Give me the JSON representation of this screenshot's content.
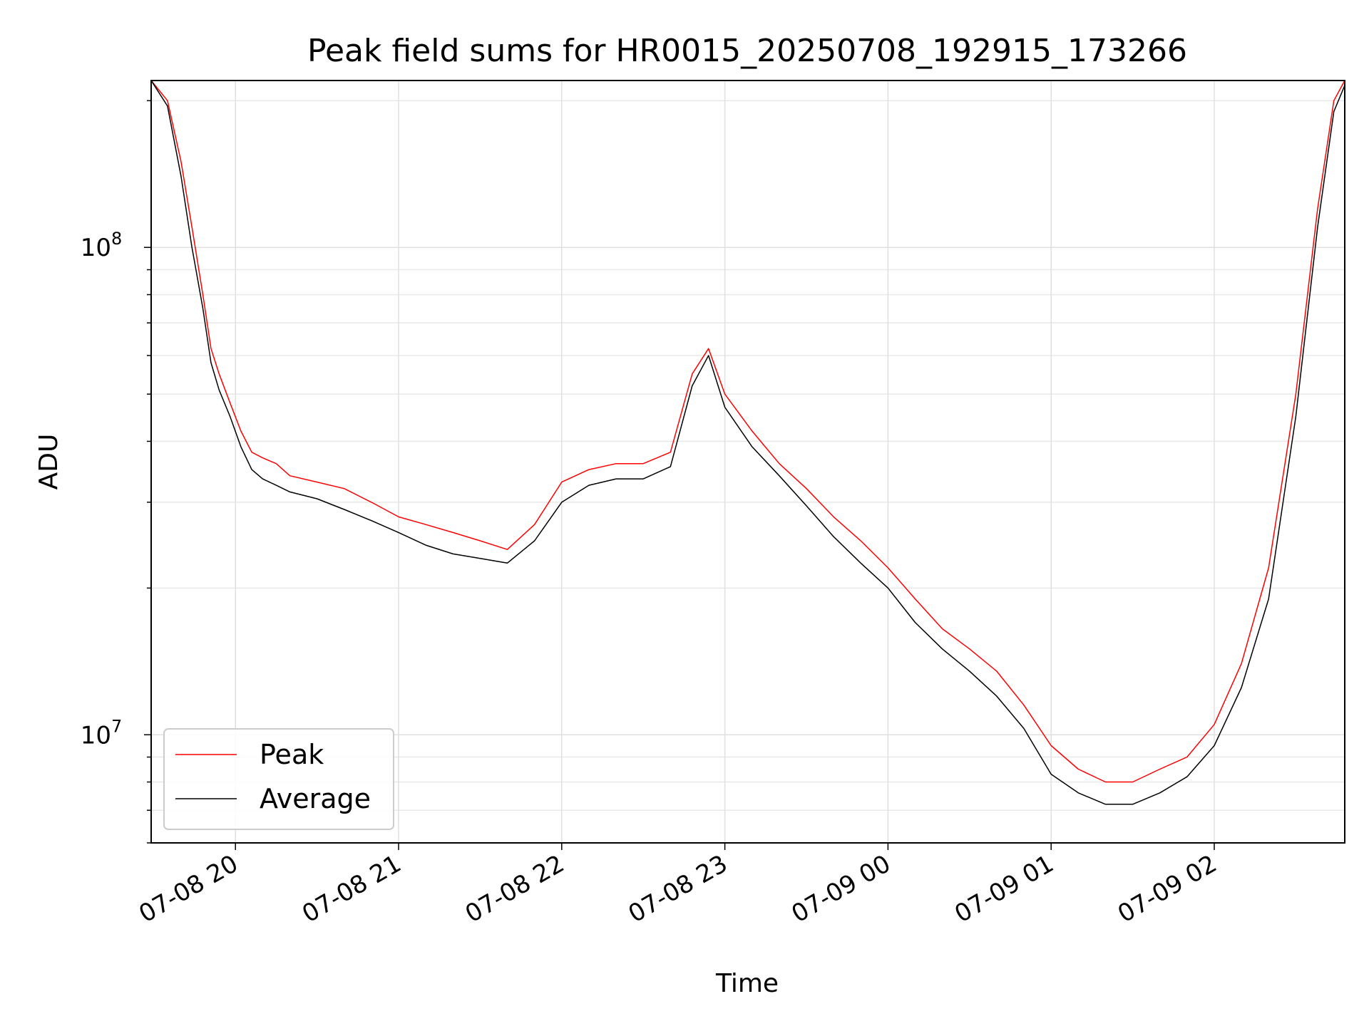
{
  "chart_data": {
    "type": "line",
    "title": "Peak field sums for HR0015_20250708_192915_173266",
    "xlabel": "Time",
    "ylabel": "ADU",
    "y_scale": "log",
    "ylim": [
      6000000,
      220000000
    ],
    "xlim": [
      "07-08 19:29",
      "07-09 02:48"
    ],
    "x_ticks": [
      "07-08 20",
      "07-08 21",
      "07-08 22",
      "07-08 23",
      "07-09 00",
      "07-09 01",
      "07-09 02"
    ],
    "y_ticks": [
      {
        "value": 10000000,
        "base": "10",
        "exp": "7"
      },
      {
        "value": 100000000,
        "base": "10",
        "exp": "8"
      }
    ],
    "grid": true,
    "legend_position": "lower-left",
    "series": [
      {
        "name": "Peak",
        "color": "#ff0000",
        "x": [
          "07-08 19:29",
          "07-08 19:35",
          "07-08 19:40",
          "07-08 19:44",
          "07-08 19:48",
          "07-08 19:51",
          "07-08 19:54",
          "07-08 19:58",
          "07-08 20:02",
          "07-08 20:06",
          "07-08 20:10",
          "07-08 20:15",
          "07-08 20:20",
          "07-08 20:30",
          "07-08 20:40",
          "07-08 20:50",
          "07-08 21:00",
          "07-08 21:10",
          "07-08 21:20",
          "07-08 21:30",
          "07-08 21:40",
          "07-08 21:50",
          "07-08 22:00",
          "07-08 22:10",
          "07-08 22:20",
          "07-08 22:30",
          "07-08 22:40",
          "07-08 22:48",
          "07-08 22:54",
          "07-08 23:00",
          "07-08 23:10",
          "07-08 23:20",
          "07-08 23:30",
          "07-08 23:40",
          "07-08 23:50",
          "07-09 00:00",
          "07-09 00:10",
          "07-09 00:20",
          "07-09 00:30",
          "07-09 00:40",
          "07-09 00:50",
          "07-09 01:00",
          "07-09 01:10",
          "07-09 01:20",
          "07-09 01:30",
          "07-09 01:40",
          "07-09 01:50",
          "07-09 02:00",
          "07-09 02:10",
          "07-09 02:20",
          "07-09 02:30",
          "07-09 02:38",
          "07-09 02:44",
          "07-09 02:48"
        ],
        "y": [
          220000000,
          200000000,
          150000000,
          110000000,
          80000000,
          62000000,
          55000000,
          48000000,
          42000000,
          38000000,
          37000000,
          36000000,
          34000000,
          33000000,
          32000000,
          30000000,
          28000000,
          27000000,
          26000000,
          25000000,
          24000000,
          27000000,
          33000000,
          35000000,
          36000000,
          36000000,
          38000000,
          55000000,
          62000000,
          50000000,
          42000000,
          36000000,
          32000000,
          28000000,
          25000000,
          22000000,
          19000000,
          16500000,
          15000000,
          13500000,
          11500000,
          9500000,
          8500000,
          8000000,
          8000000,
          8500000,
          9000000,
          10500000,
          14000000,
          22000000,
          50000000,
          120000000,
          200000000,
          220000000
        ]
      },
      {
        "name": "Average",
        "color": "#000000",
        "x": [
          "07-08 19:29",
          "07-08 19:35",
          "07-08 19:40",
          "07-08 19:44",
          "07-08 19:48",
          "07-08 19:51",
          "07-08 19:54",
          "07-08 19:58",
          "07-08 20:02",
          "07-08 20:06",
          "07-08 20:10",
          "07-08 20:15",
          "07-08 20:20",
          "07-08 20:30",
          "07-08 20:40",
          "07-08 20:50",
          "07-08 21:00",
          "07-08 21:10",
          "07-08 21:20",
          "07-08 21:30",
          "07-08 21:40",
          "07-08 21:50",
          "07-08 22:00",
          "07-08 22:10",
          "07-08 22:20",
          "07-08 22:30",
          "07-08 22:40",
          "07-08 22:48",
          "07-08 22:54",
          "07-08 23:00",
          "07-08 23:10",
          "07-08 23:20",
          "07-08 23:30",
          "07-08 23:40",
          "07-08 23:50",
          "07-09 00:00",
          "07-09 00:10",
          "07-09 00:20",
          "07-09 00:30",
          "07-09 00:40",
          "07-09 00:50",
          "07-09 01:00",
          "07-09 01:10",
          "07-09 01:20",
          "07-09 01:30",
          "07-09 01:40",
          "07-09 01:50",
          "07-09 02:00",
          "07-09 02:10",
          "07-09 02:20",
          "07-09 02:30",
          "07-09 02:38",
          "07-09 02:44",
          "07-09 02:48"
        ],
        "y": [
          220000000,
          195000000,
          140000000,
          100000000,
          75000000,
          58000000,
          51000000,
          45000000,
          39000000,
          35000000,
          33500000,
          32500000,
          31500000,
          30500000,
          29000000,
          27500000,
          26000000,
          24500000,
          23500000,
          23000000,
          22500000,
          25000000,
          30000000,
          32500000,
          33500000,
          33500000,
          35500000,
          52000000,
          60000000,
          47000000,
          39000000,
          34000000,
          29500000,
          25500000,
          22500000,
          20000000,
          17000000,
          15000000,
          13500000,
          12000000,
          10300000,
          8300000,
          7600000,
          7200000,
          7200000,
          7600000,
          8200000,
          9500000,
          12500000,
          19000000,
          45000000,
          110000000,
          190000000,
          215000000
        ]
      }
    ]
  }
}
